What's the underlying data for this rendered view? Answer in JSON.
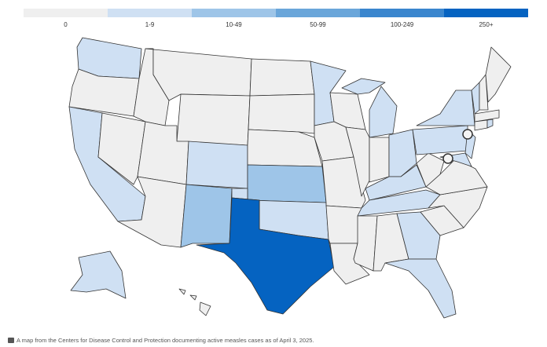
{
  "legend": [
    {
      "label": "0",
      "color": "#efefef"
    },
    {
      "label": "1-9",
      "color": "#cfe0f3"
    },
    {
      "label": "10-49",
      "color": "#9ec5e8"
    },
    {
      "label": "50-99",
      "color": "#6aa6da"
    },
    {
      "label": "100-249",
      "color": "#3a86ce"
    },
    {
      "label": "250+",
      "color": "#0563c1"
    }
  ],
  "caption": "A map from the Centers for Disease Control and Protection documenting active measles cases as of April 3, 2025."
}
